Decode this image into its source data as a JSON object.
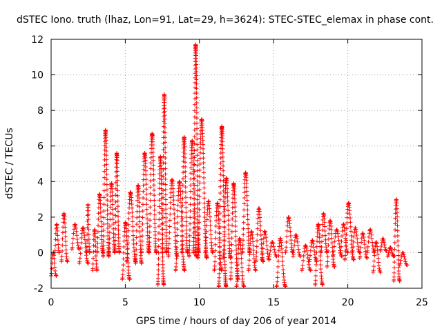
{
  "chart_data": {
    "type": "scatter",
    "title": "dSTEC Iono. truth (lhaz, Lon=91, Lat=29, h=3624): STEC-STEC_elemax in phase cont.",
    "xlabel": "GPS time / hours of day 206 of year 2014",
    "ylabel": "dSTEC  / TECUs",
    "xlim": [
      0,
      25
    ],
    "ylim": [
      -2,
      12
    ],
    "xticks": [
      0,
      5,
      10,
      15,
      20,
      25
    ],
    "yticks": [
      -2,
      0,
      2,
      4,
      6,
      8,
      10,
      12
    ],
    "grid": true,
    "marker": "plus",
    "color": "#ff0000",
    "tracks": [
      {
        "t0": 0.0,
        "t1": 0.35,
        "ymin": -1.3,
        "ymax": 0.0
      },
      {
        "t0": 0.25,
        "t1": 0.55,
        "ymin": 0.0,
        "ymax": 1.6
      },
      {
        "t0": 0.7,
        "t1": 1.1,
        "ymin": -0.5,
        "ymax": 2.2
      },
      {
        "t0": 1.4,
        "t1": 1.9,
        "ymin": 0.2,
        "ymax": 1.6
      },
      {
        "t0": 1.9,
        "t1": 2.5,
        "ymin": -0.6,
        "ymax": 1.4
      },
      {
        "t0": 2.4,
        "t1": 2.6,
        "ymin": 0.0,
        "ymax": 2.7
      },
      {
        "t0": 2.8,
        "t1": 3.1,
        "ymin": -1.0,
        "ymax": 1.3
      },
      {
        "t0": 3.1,
        "t1": 3.5,
        "ymin": 0.0,
        "ymax": 3.3
      },
      {
        "t0": 3.5,
        "t1": 3.9,
        "ymin": -0.2,
        "ymax": 6.9
      },
      {
        "t0": 3.9,
        "t1": 4.3,
        "ymin": 0.0,
        "ymax": 3.9
      },
      {
        "t0": 4.3,
        "t1": 4.6,
        "ymin": 0.0,
        "ymax": 5.6
      },
      {
        "t0": 4.8,
        "t1": 5.3,
        "ymin": -1.5,
        "ymax": 1.7
      },
      {
        "t0": 5.1,
        "t1": 5.7,
        "ymin": -0.5,
        "ymax": 3.4
      },
      {
        "t0": 5.7,
        "t1": 6.1,
        "ymin": -0.6,
        "ymax": 3.8
      },
      {
        "t0": 6.1,
        "t1": 6.6,
        "ymin": 0.0,
        "ymax": 5.6
      },
      {
        "t0": 6.6,
        "t1": 7.1,
        "ymin": 0.0,
        "ymax": 6.7
      },
      {
        "t0": 7.2,
        "t1": 7.6,
        "ymin": -1.8,
        "ymax": 5.4
      },
      {
        "t0": 7.5,
        "t1": 7.8,
        "ymin": 0.0,
        "ymax": 8.9
      },
      {
        "t0": 7.9,
        "t1": 8.5,
        "ymin": -0.2,
        "ymax": 4.1
      },
      {
        "t0": 8.4,
        "t1": 9.0,
        "ymin": -1.0,
        "ymax": 4.0
      },
      {
        "t0": 8.8,
        "t1": 9.2,
        "ymin": 0.0,
        "ymax": 6.5
      },
      {
        "t0": 9.3,
        "t1": 9.8,
        "ymin": -0.2,
        "ymax": 6.3
      },
      {
        "t0": 9.6,
        "t1": 9.95,
        "ymin": 0.0,
        "ymax": 11.7
      },
      {
        "t0": 9.9,
        "t1": 10.5,
        "ymin": -0.3,
        "ymax": 7.5
      },
      {
        "t0": 10.4,
        "t1": 10.9,
        "ymin": 0.0,
        "ymax": 2.9
      },
      {
        "t0": 11.0,
        "t1": 11.5,
        "ymin": -1.0,
        "ymax": 2.8
      },
      {
        "t0": 11.3,
        "t1": 11.8,
        "ymin": -1.9,
        "ymax": 7.1
      },
      {
        "t0": 11.6,
        "t1": 12.1,
        "ymin": -0.3,
        "ymax": 4.2
      },
      {
        "t0": 12.1,
        "t1": 12.6,
        "ymin": -1.5,
        "ymax": 3.9
      },
      {
        "t0": 12.5,
        "t1": 13.0,
        "ymin": -1.9,
        "ymax": 0.8
      },
      {
        "t0": 12.9,
        "t1": 13.4,
        "ymin": 0.0,
        "ymax": 4.5
      },
      {
        "t0": 13.3,
        "t1": 13.8,
        "ymin": -1.0,
        "ymax": 1.2
      },
      {
        "t0": 13.8,
        "t1": 14.3,
        "ymin": -0.5,
        "ymax": 2.5
      },
      {
        "t0": 14.2,
        "t1": 14.7,
        "ymin": -0.4,
        "ymax": 1.2
      },
      {
        "t0": 14.7,
        "t1": 15.2,
        "ymin": -0.2,
        "ymax": 0.6
      },
      {
        "t0": 15.2,
        "t1": 15.8,
        "ymin": -1.9,
        "ymax": 0.8
      },
      {
        "t0": 15.8,
        "t1": 16.3,
        "ymin": 0.0,
        "ymax": 2.0
      },
      {
        "t0": 16.3,
        "t1": 16.8,
        "ymin": -0.2,
        "ymax": 1.0
      },
      {
        "t0": 16.9,
        "t1": 17.5,
        "ymin": -1.0,
        "ymax": 0.4
      },
      {
        "t0": 17.4,
        "t1": 17.9,
        "ymin": -0.5,
        "ymax": 0.7
      },
      {
        "t0": 17.8,
        "t1": 18.3,
        "ymin": -1.8,
        "ymax": 1.6
      },
      {
        "t0": 18.2,
        "t1": 18.6,
        "ymin": 0.0,
        "ymax": 2.2
      },
      {
        "t0": 18.6,
        "t1": 19.1,
        "ymin": -0.8,
        "ymax": 1.8
      },
      {
        "t0": 19.0,
        "t1": 19.6,
        "ymin": -0.2,
        "ymax": 1.3
      },
      {
        "t0": 19.5,
        "t1": 20.0,
        "ymin": 0.0,
        "ymax": 1.6
      },
      {
        "t0": 19.8,
        "t1": 20.4,
        "ymin": -0.4,
        "ymax": 2.8
      },
      {
        "t0": 20.3,
        "t1": 20.8,
        "ymin": 0.0,
        "ymax": 1.4
      },
      {
        "t0": 20.8,
        "t1": 21.3,
        "ymin": -0.3,
        "ymax": 1.1
      },
      {
        "t0": 21.3,
        "t1": 21.8,
        "ymin": 0.0,
        "ymax": 1.3
      },
      {
        "t0": 21.7,
        "t1": 22.2,
        "ymin": -1.1,
        "ymax": 0.6
      },
      {
        "t0": 22.2,
        "t1": 22.6,
        "ymin": 0.1,
        "ymax": 0.8
      },
      {
        "t0": 22.7,
        "t1": 23.1,
        "ymin": -0.2,
        "ymax": 0.3
      },
      {
        "t0": 23.1,
        "t1": 23.5,
        "ymin": -1.6,
        "ymax": 3.0
      },
      {
        "t0": 23.5,
        "t1": 24.0,
        "ymin": -0.7,
        "ymax": 0.0
      }
    ]
  }
}
